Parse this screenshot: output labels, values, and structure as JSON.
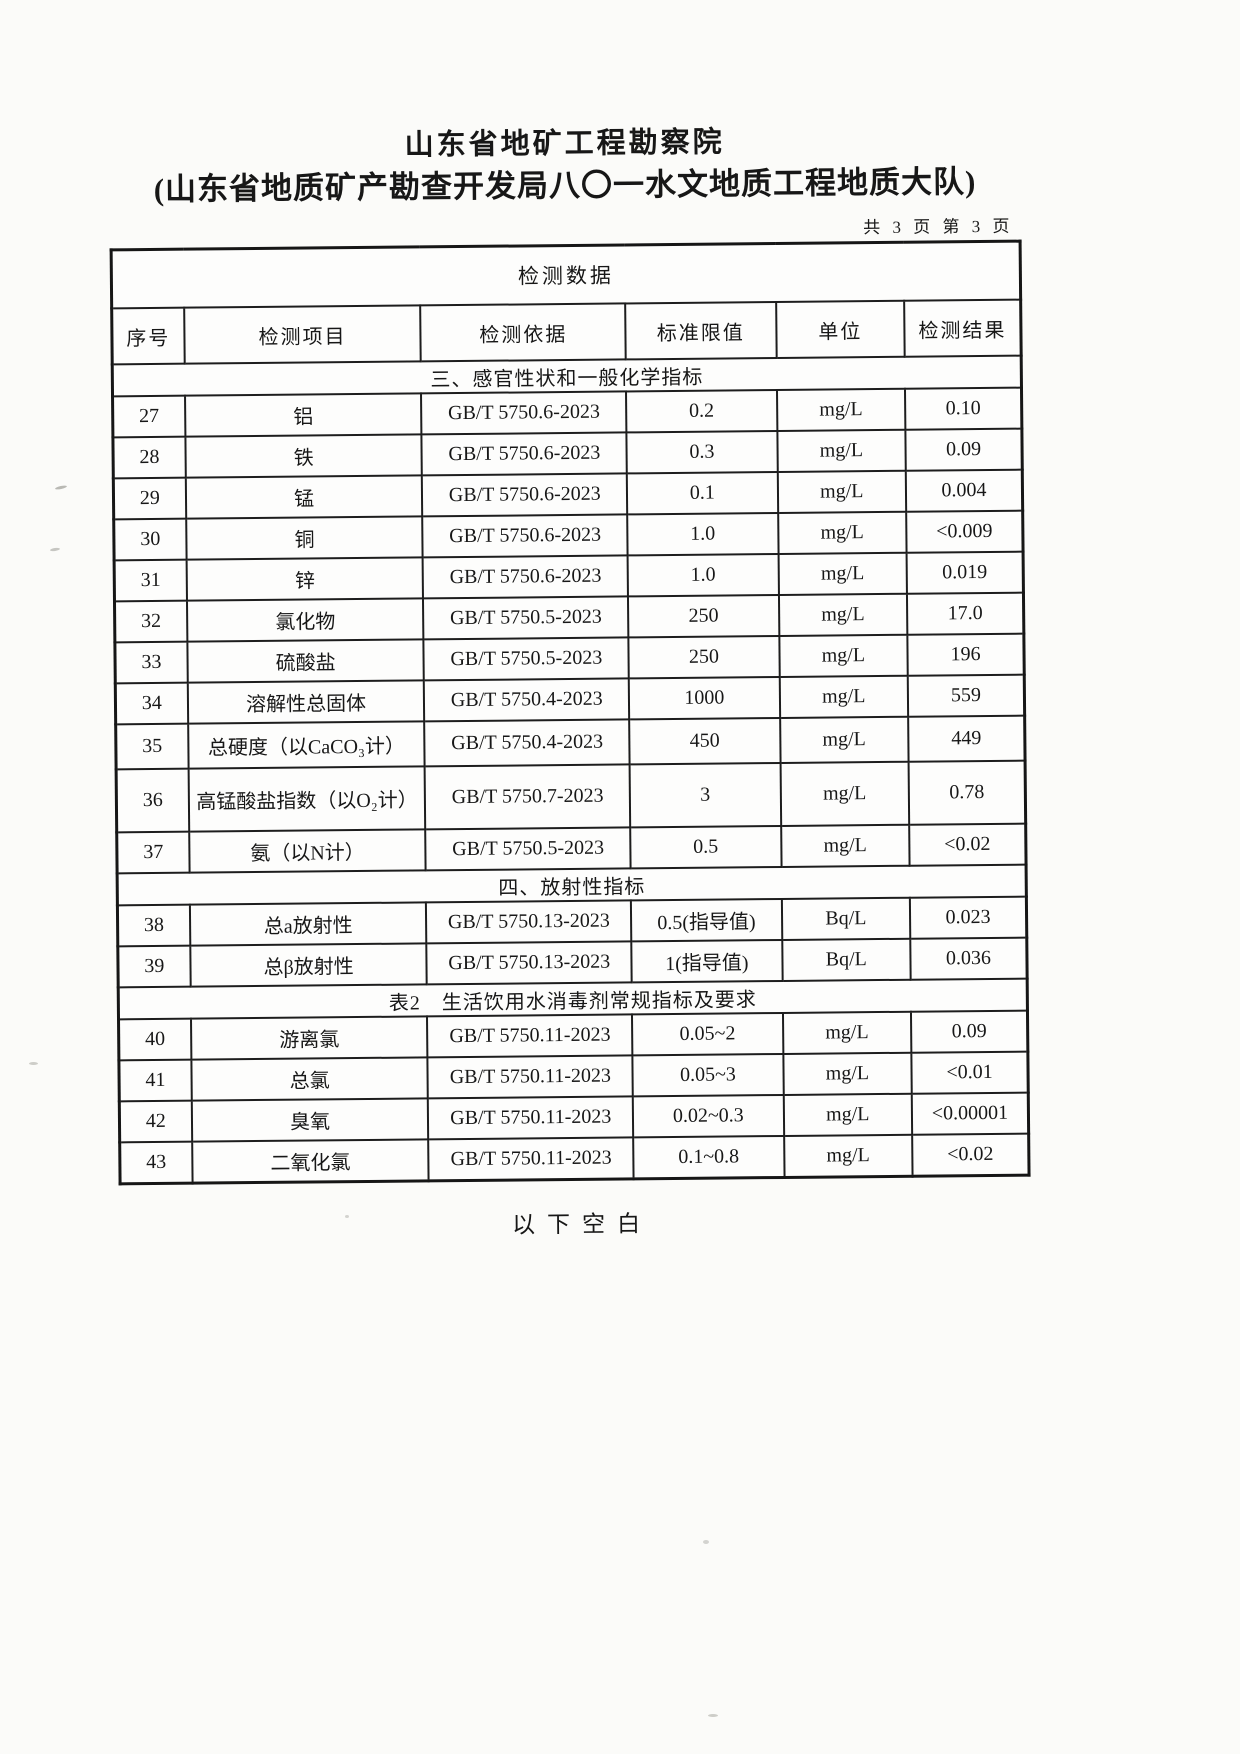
{
  "colors": {
    "ink": "#171717",
    "paper": "#fbfbf9"
  },
  "header": {
    "title": "山东省地矿工程勘察院",
    "subtitle": "(山东省地质矿产勘查开发局八〇一水文地质工程地质大队)",
    "page_indicator": "共 3 页 第 3 页"
  },
  "table": {
    "title": "检测数据",
    "columns": [
      "序号",
      "检测项目",
      "检测依据",
      "标准限值",
      "单位",
      "检测结果"
    ],
    "sections": [
      {
        "section_title": "三、感官性状和一般化学指标",
        "rows": [
          [
            "27",
            "铝",
            "GB/T 5750.6-2023",
            "0.2",
            "mg/L",
            "0.10"
          ],
          [
            "28",
            "铁",
            "GB/T 5750.6-2023",
            "0.3",
            "mg/L",
            "0.09"
          ],
          [
            "29",
            "锰",
            "GB/T 5750.6-2023",
            "0.1",
            "mg/L",
            "0.004"
          ],
          [
            "30",
            "铜",
            "GB/T 5750.6-2023",
            "1.0",
            "mg/L",
            "<0.009"
          ],
          [
            "31",
            "锌",
            "GB/T 5750.6-2023",
            "1.0",
            "mg/L",
            "0.019"
          ],
          [
            "32",
            "氯化物",
            "GB/T 5750.5-2023",
            "250",
            "mg/L",
            "17.0"
          ],
          [
            "33",
            "硫酸盐",
            "GB/T 5750.5-2023",
            "250",
            "mg/L",
            "196"
          ],
          [
            "34",
            "溶解性总固体",
            "GB/T 5750.4-2023",
            "1000",
            "mg/L",
            "559"
          ],
          [
            "35",
            "总硬度（以CaCO₃计）",
            "GB/T 5750.4-2023",
            "450",
            "mg/L",
            "449"
          ],
          [
            "36",
            "高锰酸盐指数（以O₂计）",
            "GB/T 5750.7-2023",
            "3",
            "mg/L",
            "0.78"
          ],
          [
            "37",
            "氨（以N计）",
            "GB/T 5750.5-2023",
            "0.5",
            "mg/L",
            "<0.02"
          ]
        ]
      },
      {
        "section_title": "四、放射性指标",
        "rows": [
          [
            "38",
            "总a放射性",
            "GB/T 5750.13-2023",
            "0.5(指导值)",
            "Bq/L",
            "0.023"
          ],
          [
            "39",
            "总β放射性",
            "GB/T 5750.13-2023",
            "1(指导值)",
            "Bq/L",
            "0.036"
          ]
        ]
      },
      {
        "section_title": "表2　生活饮用水消毒剂常规指标及要求",
        "rows": [
          [
            "40",
            "游离氯",
            "GB/T 5750.11-2023",
            "0.05~2",
            "mg/L",
            "0.09"
          ],
          [
            "41",
            "总氯",
            "GB/T 5750.11-2023",
            "0.05~3",
            "mg/L",
            "<0.01"
          ],
          [
            "42",
            "臭氧",
            "GB/T 5750.11-2023",
            "0.02~0.3",
            "mg/L",
            "<0.00001"
          ],
          [
            "43",
            "二氧化氯",
            "GB/T 5750.11-2023",
            "0.1~0.8",
            "mg/L",
            "<0.02"
          ]
        ]
      }
    ]
  },
  "footer": {
    "note": "以下空白"
  }
}
